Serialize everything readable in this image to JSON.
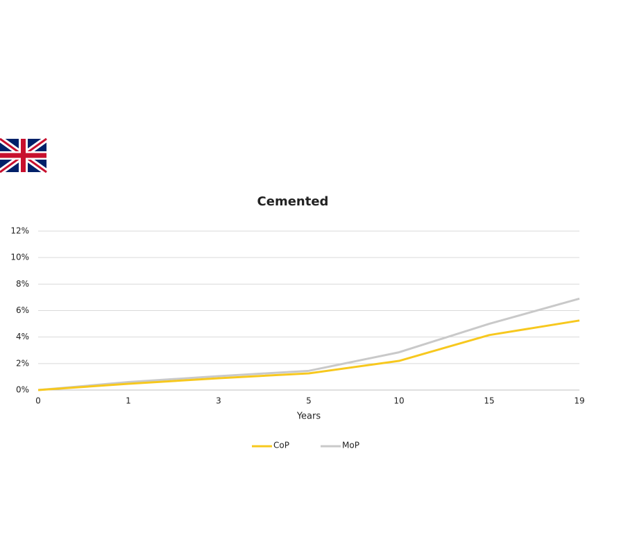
{
  "chart_data": {
    "type": "line",
    "title": "Cemented",
    "x_label": "Years",
    "categories": [
      "0",
      "1",
      "3",
      "5",
      "10",
      "15",
      "19"
    ],
    "series": [
      {
        "name": "CoP",
        "color": "#f7c81e",
        "values": [
          0,
          0.47,
          0.89,
          1.26,
          2.2,
          4.15,
          5.25
        ]
      },
      {
        "name": "MoP",
        "color": "#c9c9c9",
        "values": [
          0,
          0.6,
          1.05,
          1.45,
          2.85,
          5.0,
          6.9
        ]
      }
    ],
    "ylim": [
      0,
      12
    ],
    "yticks": [
      {
        "value": 0,
        "label": "0%"
      },
      {
        "value": 2,
        "label": "2%"
      },
      {
        "value": 4,
        "label": "4%"
      },
      {
        "value": 6,
        "label": "6%"
      },
      {
        "value": 8,
        "label": "8%"
      },
      {
        "value": 10,
        "label": "10%"
      },
      {
        "value": 12,
        "label": "12%"
      }
    ],
    "grid": true,
    "legend": "bottom"
  }
}
